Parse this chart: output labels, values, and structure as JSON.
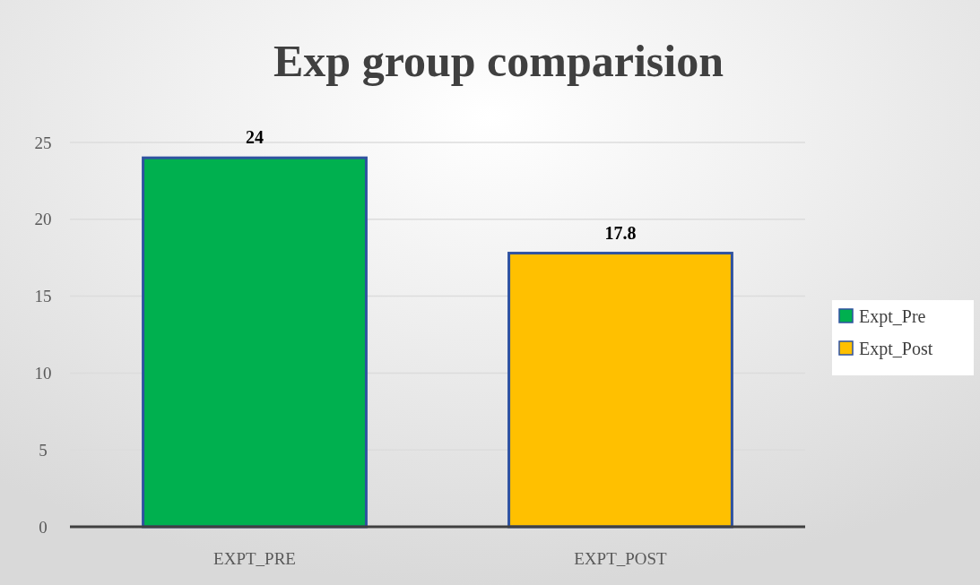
{
  "chart_data": {
    "type": "bar",
    "title": "Exp group comparision",
    "categories": [
      "EXPT_PRE",
      "EXPT_POST"
    ],
    "stacked": true,
    "series": [
      {
        "name": "Expt_Pre",
        "color": "#00b04f",
        "values": [
          24,
          null
        ]
      },
      {
        "name": "Expt_Post",
        "color": "#ffc000",
        "values": [
          null,
          17.8
        ]
      }
    ],
    "ylim": [
      0,
      25
    ],
    "yticks": [
      0,
      5,
      10,
      15,
      20,
      25
    ],
    "grid": "y",
    "data_labels": true,
    "legend": "right"
  }
}
